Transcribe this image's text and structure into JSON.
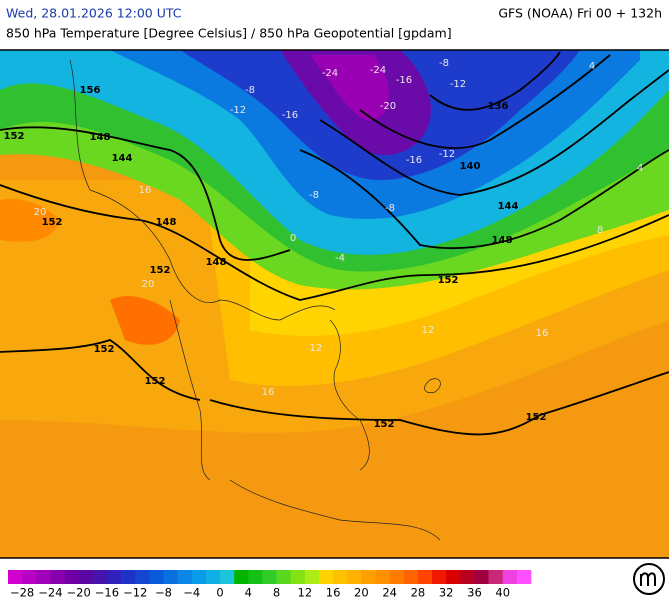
{
  "header": {
    "datetime": "Wed, 28.01.2026 12:00 UTC",
    "model": "GFS (NOAA) Fri 00 + 132h",
    "title": "850 hPa Temperature [Degree Celsius] / 850 hPa Geopotential [gpdam]"
  },
  "map": {
    "geopotential_labels": [
      "152",
      "156",
      "148",
      "144",
      "152",
      "148",
      "152",
      "148",
      "152",
      "152",
      "152",
      "152",
      "152",
      "148",
      "144",
      "140",
      "136"
    ],
    "temperature_labels": [
      "-24",
      "-24",
      "-20",
      "-16",
      "-16",
      "-12",
      "-8",
      "-16",
      "-12",
      "-8",
      "-8",
      "-4",
      "0",
      "4",
      "4",
      "8",
      "12",
      "12",
      "16",
      "16",
      "20",
      "20",
      "16",
      "-8",
      "-12"
    ]
  },
  "legend": {
    "labels": [
      "−28",
      "−24",
      "−20",
      "−16",
      "−12",
      "−8",
      "−4",
      "0",
      "4",
      "8",
      "12",
      "16",
      "20",
      "24",
      "28",
      "32",
      "36",
      "40"
    ],
    "colors": [
      "#d000d0",
      "#b800c4",
      "#a000b8",
      "#8800ac",
      "#7000a4",
      "#5a08a4",
      "#4414ac",
      "#3020bc",
      "#1e32c8",
      "#1446d2",
      "#0a5adc",
      "#0a70e0",
      "#0a86e6",
      "#0a9cea",
      "#10b0e6",
      "#1cc4dc",
      "#00b400",
      "#14c014",
      "#32cc28",
      "#5ad81e",
      "#82e214",
      "#aaec14",
      "#ffd200",
      "#ffc000",
      "#ffb000",
      "#ffa000",
      "#ff9000",
      "#ff7c00",
      "#ff6400",
      "#ff4400",
      "#f01800",
      "#d80000",
      "#b80020",
      "#a00040",
      "#c8287a",
      "#f040e0",
      "#ff50ff"
    ]
  }
}
